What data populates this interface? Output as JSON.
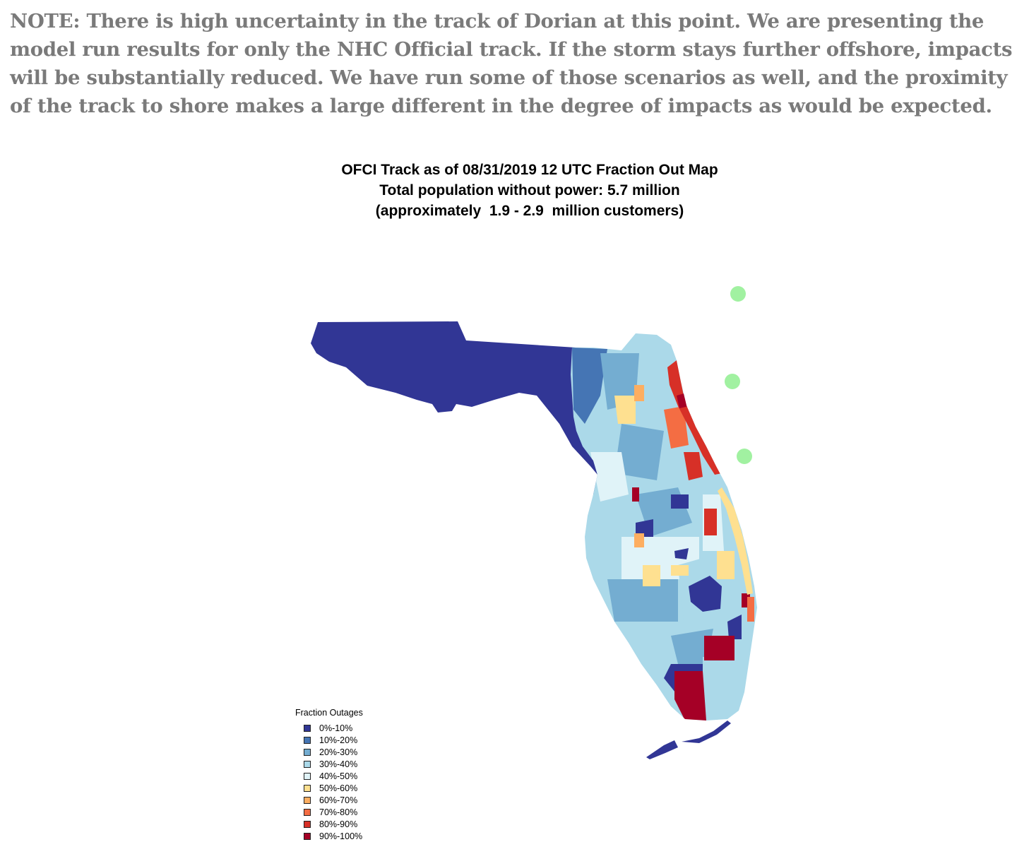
{
  "note": "NOTE: There is high uncertainty in the track of Dorian at this point. We are presenting the model run results for only the NHC Official track. If the storm stays further offshore, impacts will be substantially reduced. We have run some of those scenarios as well, and the proximity of the track to shore makes a large different in the degree of impacts as would be expected.",
  "map": {
    "title_line1": "OFCI Track as of 08/31/2019 12 UTC Fraction Out Map",
    "title_line2": "Total population without power: 5.7 million",
    "title_line3": "(approximately  1.9 - 2.9  million customers)",
    "region": "Florida",
    "track_points_count": 3,
    "track_point_color": "#90ee90"
  },
  "legend": {
    "title": "Fraction Outages",
    "items": [
      {
        "label": "0%-10%",
        "color": "#313695"
      },
      {
        "label": "10%-20%",
        "color": "#4575b4"
      },
      {
        "label": "20%-30%",
        "color": "#74add1"
      },
      {
        "label": "30%-40%",
        "color": "#abd9e9"
      },
      {
        "label": "40%-50%",
        "color": "#e0f3f8"
      },
      {
        "label": "50%-60%",
        "color": "#fee090"
      },
      {
        "label": "60%-70%",
        "color": "#fdae61"
      },
      {
        "label": "70%-80%",
        "color": "#f46d43"
      },
      {
        "label": "80%-90%",
        "color": "#d73027"
      },
      {
        "label": "90%-100%",
        "color": "#a50026"
      }
    ]
  }
}
